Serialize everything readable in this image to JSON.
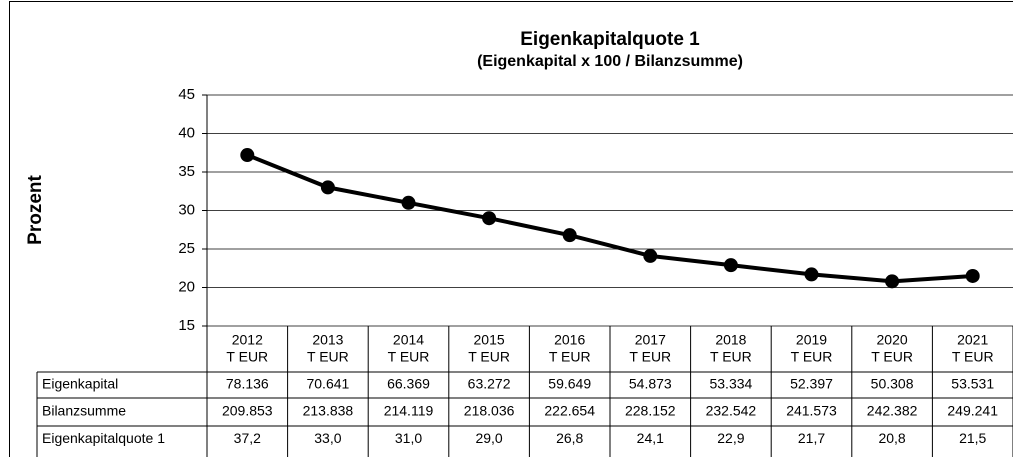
{
  "chart_data": {
    "type": "line",
    "title": "Eigenkapitalquote 1",
    "subtitle": "(Eigenkapital x 100 / Bilanzsumme)",
    "y_label": "Prozent",
    "categories": [
      "2012",
      "2013",
      "2014",
      "2015",
      "2016",
      "2017",
      "2018",
      "2019",
      "2020",
      "2021"
    ],
    "category_unit": "T EUR",
    "series": [
      {
        "name": "Eigenkapitalquote 1",
        "color": "#000000",
        "values": [
          37.2,
          33.0,
          31.0,
          29.0,
          26.8,
          24.1,
          22.9,
          21.7,
          20.8,
          21.5
        ],
        "value_labels": [
          "37,2",
          "33,0",
          "31,0",
          "29,0",
          "26,8",
          "24,1",
          "22,9",
          "21,7",
          "20,8",
          "21,5"
        ]
      }
    ],
    "table_rows": [
      {
        "name": "Eigenkapital",
        "values": [
          "78.136",
          "70.641",
          "66.369",
          "63.272",
          "59.649",
          "54.873",
          "53.334",
          "52.397",
          "50.308",
          "53.531"
        ]
      },
      {
        "name": "Bilanzsumme",
        "values": [
          "209.853",
          "213.838",
          "214.119",
          "218.036",
          "222.654",
          "228.152",
          "232.542",
          "241.573",
          "242.382",
          "249.241"
        ]
      }
    ],
    "ylim": [
      15,
      45
    ],
    "yticks": [
      15,
      20,
      25,
      30,
      35,
      40,
      45
    ],
    "grid": true
  }
}
